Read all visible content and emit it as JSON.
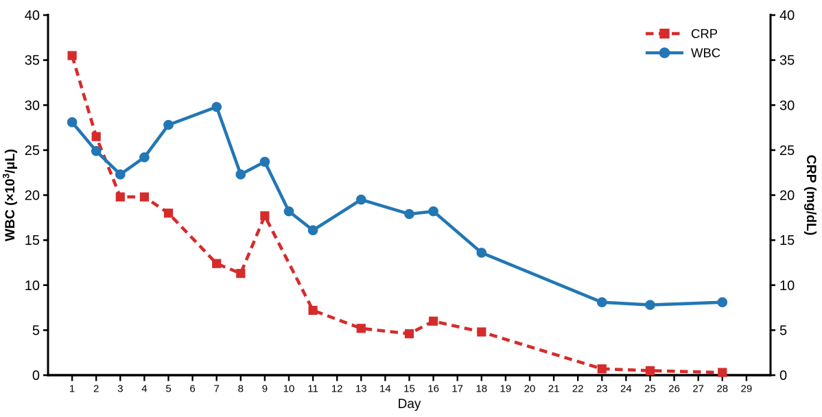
{
  "chart_data": {
    "type": "line",
    "title": "",
    "xlabel": "Day",
    "ylabel_left": "WBC (×10³/μL)",
    "ylabel_left_parts": {
      "pre": "WBC (×10",
      "sup": "3",
      "post": "/μL)"
    },
    "ylabel_right": "CRP (mg/dL)",
    "xlim": [
      0,
      30
    ],
    "ylim": [
      0,
      40
    ],
    "x_ticks": [
      1,
      2,
      3,
      4,
      5,
      6,
      7,
      8,
      9,
      10,
      11,
      12,
      13,
      14,
      15,
      16,
      17,
      18,
      19,
      20,
      21,
      22,
      23,
      24,
      25,
      26,
      27,
      28,
      29
    ],
    "y_ticks_left": [
      0,
      5,
      10,
      15,
      20,
      25,
      30,
      35,
      40
    ],
    "y_ticks_right": [
      0,
      5,
      10,
      15,
      20,
      25,
      30,
      35,
      40
    ],
    "grid": false,
    "legend_position": "top-right",
    "axis_color": "#000000",
    "series": [
      {
        "name": "CRP",
        "color": "#d62b2b",
        "line_style": "dashed",
        "marker": "square",
        "points": [
          [
            1,
            35.5
          ],
          [
            2,
            26.5
          ],
          [
            3,
            19.8
          ],
          [
            4,
            19.8
          ],
          [
            5,
            18.0
          ],
          [
            7,
            12.4
          ],
          [
            8,
            11.3
          ],
          [
            9,
            17.7
          ],
          [
            11,
            7.2
          ],
          [
            13,
            5.2
          ],
          [
            15,
            4.6
          ],
          [
            16,
            6.0
          ],
          [
            18,
            4.8
          ],
          [
            23,
            0.7
          ],
          [
            25,
            0.5
          ],
          [
            28,
            0.3
          ]
        ]
      },
      {
        "name": "WBC",
        "color": "#2277b4",
        "line_style": "solid",
        "marker": "circle",
        "points": [
          [
            1,
            28.1
          ],
          [
            2,
            24.9
          ],
          [
            3,
            22.3
          ],
          [
            4,
            24.2
          ],
          [
            5,
            27.8
          ],
          [
            7,
            29.8
          ],
          [
            8,
            22.3
          ],
          [
            9,
            23.7
          ],
          [
            10,
            18.2
          ],
          [
            11,
            16.1
          ],
          [
            13,
            19.5
          ],
          [
            15,
            17.9
          ],
          [
            16,
            18.2
          ],
          [
            18,
            13.6
          ],
          [
            23,
            8.1
          ],
          [
            25,
            7.8
          ],
          [
            28,
            8.1
          ]
        ]
      }
    ]
  }
}
